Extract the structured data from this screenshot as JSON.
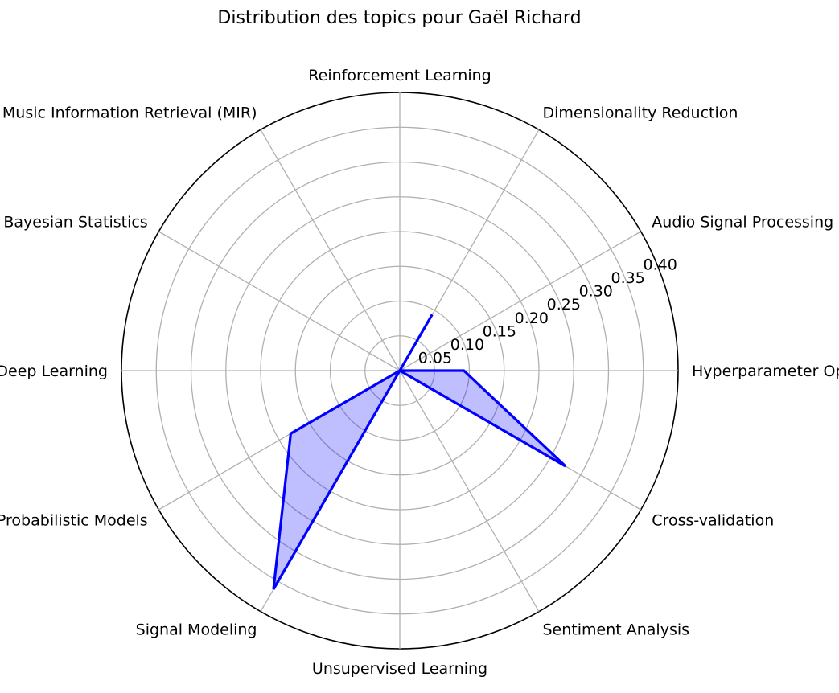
{
  "chart_data": {
    "type": "radar",
    "title": "Distribution des topics pour Gaël Richard",
    "categories": [
      "Hyperparameter Optimization",
      "Audio Signal Processing",
      "Dimensionality Reduction",
      "Reinforcement Learning",
      "Machine Listening and Music Information Retrieval (MIR)",
      "Bayesian Statistics",
      "Deep Learning",
      "Probabilistic Models",
      "Signal Modeling",
      "Unsupervised Learning",
      "Sentiment Analysis",
      "Cross-validation"
    ],
    "series": [
      {
        "values": [
          0.092,
          0.0,
          0.093,
          0.0,
          0.0,
          0.0,
          0.0,
          0.181,
          0.363,
          0.0,
          0.0,
          0.275
        ],
        "color": "#0000ff",
        "fill_color": "#0000ff"
      }
    ],
    "rlim": [
      0,
      0.4
    ],
    "radial_ticks": [
      0.05,
      0.1,
      0.15,
      0.2,
      0.25,
      0.3,
      0.35,
      0.4
    ],
    "radial_tick_labels": [
      "0.05",
      "0.10",
      "0.15",
      "0.20",
      "0.25",
      "0.30",
      "0.35",
      "0.40"
    ],
    "grid": true,
    "grid_color": "#b0b0b0",
    "xlabel": "",
    "ylabel": ""
  }
}
